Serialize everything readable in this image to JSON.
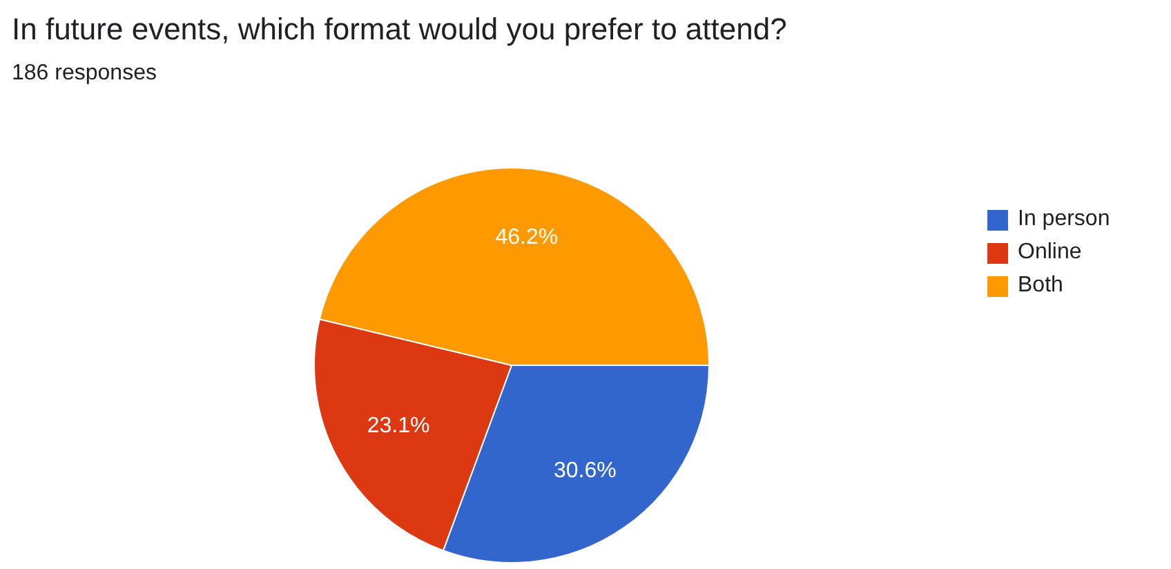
{
  "chart_data": {
    "type": "pie",
    "title": "In future events, which format would you prefer to attend?",
    "subtitle": "186 responses",
    "categories": [
      "In person",
      "Online",
      "Both"
    ],
    "values": [
      30.6,
      23.1,
      46.2
    ],
    "colors": [
      "#3366cc",
      "#dc3912",
      "#ff9900"
    ],
    "value_labels": [
      "30.6%",
      "23.1%",
      "46.2%"
    ],
    "legend": "right"
  }
}
